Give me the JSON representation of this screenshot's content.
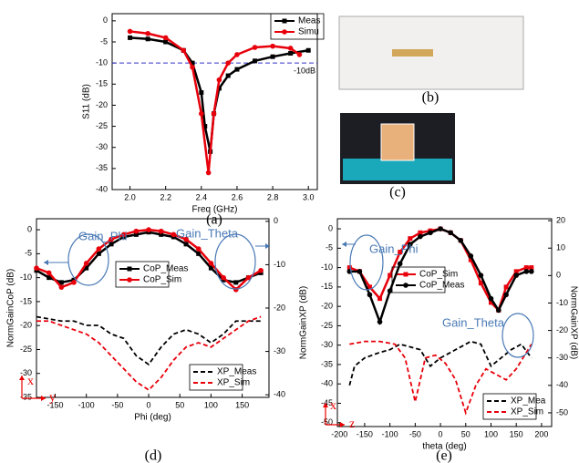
{
  "chart_data": [
    {
      "type": "line",
      "caption": "(a)",
      "x_label": "Freq (GHz)",
      "y_label": "S11 (dB)",
      "xlim": [
        1.9,
        3.05
      ],
      "xticks": [
        {
          "value": 2,
          "label": "2.0"
        },
        2.2,
        2.4,
        2.6,
        2.8,
        {
          "value": 3,
          "label": "3.0"
        }
      ],
      "ylim": [
        -40,
        1.7
      ],
      "yticks": [
        0,
        -5,
        -10,
        -15,
        -20,
        -25,
        -30,
        -35,
        -40
      ],
      "ref_line": {
        "value": -10,
        "label": "-10dB",
        "color": "#3333cc"
      },
      "series": [
        {
          "name": "Meas",
          "color": "#000000",
          "marker": "square",
          "dash": false,
          "x": [
            2.0,
            2.1,
            2.2,
            2.3,
            2.35,
            2.4,
            2.42,
            2.45,
            2.47,
            2.5,
            2.55,
            2.6,
            2.7,
            2.8,
            2.9,
            3.0
          ],
          "values": [
            -4,
            -4.3,
            -5,
            -7,
            -10,
            -17,
            -25,
            -31,
            -22,
            -16,
            -13,
            -11.5,
            -9.5,
            -8.5,
            -7.7,
            -7
          ]
        },
        {
          "name": "Simu",
          "color": "#e8000b",
          "marker": "circle",
          "dash": false,
          "x": [
            2.0,
            2.1,
            2.2,
            2.3,
            2.35,
            2.4,
            2.44,
            2.47,
            2.5,
            2.55,
            2.6,
            2.7,
            2.8,
            2.9,
            2.95
          ],
          "values": [
            -2.5,
            -3,
            -4,
            -7,
            -11,
            -22,
            -36,
            -22,
            -14,
            -10,
            -8,
            -6.3,
            -6,
            -6.5,
            -8
          ]
        }
      ]
    },
    {
      "type": "line",
      "caption": "(d)",
      "x_label": "Phi (deg)",
      "y_label": "NormGainCoP (dB)",
      "annotations": [
        "Gain_Phi",
        "Gain_Theta",
        "x",
        "y"
      ],
      "xlim": [
        -180,
        193
      ],
      "xticks": [
        -150,
        -100,
        -50,
        0,
        50,
        100,
        150
      ],
      "ylim": [
        -35,
        2.3
      ],
      "yticks": [
        0,
        -5,
        -10,
        -15,
        -20,
        -25,
        -30,
        -35
      ],
      "y2lim": [
        -40.6,
        0.6
      ],
      "y2ticks": [
        0,
        -10,
        -20,
        -30,
        -40
      ],
      "series": [
        {
          "name": "CoP_Meas",
          "color": "#000000",
          "marker": "square",
          "dash": false,
          "x": [
            -180,
            -160,
            -140,
            -120,
            -100,
            -80,
            -60,
            -40,
            -20,
            0,
            20,
            40,
            60,
            80,
            100,
            120,
            140,
            160,
            180
          ],
          "values": [
            -8.5,
            -10,
            -11,
            -10.5,
            -8,
            -5,
            -3,
            -1.5,
            -1,
            -0.5,
            -1,
            -1.5,
            -3,
            -5,
            -8,
            -10.5,
            -11,
            -10,
            -9
          ]
        },
        {
          "name": "CoP_Sim",
          "color": "#e8000b",
          "marker": "circle",
          "dash": false,
          "x": [
            -180,
            -160,
            -140,
            -120,
            -100,
            -80,
            -60,
            -40,
            -20,
            0,
            20,
            40,
            60,
            80,
            100,
            120,
            140,
            160,
            180
          ],
          "values": [
            -8,
            -9,
            -12,
            -11,
            -7,
            -4,
            -2,
            -1,
            -0.3,
            0,
            -0.3,
            -1,
            -2,
            -4,
            -7,
            -10,
            -12.5,
            -10,
            -8.5
          ]
        },
        {
          "name": "XP_Meas",
          "color": "#000000",
          "marker": "none",
          "dash": true,
          "axis": "y2",
          "x": [
            -180,
            -160,
            -140,
            -120,
            -100,
            -80,
            -60,
            -40,
            -20,
            0,
            20,
            40,
            60,
            80,
            100,
            120,
            140,
            160,
            180
          ],
          "values": [
            -22,
            -22.5,
            -23,
            -23,
            -24,
            -24,
            -26,
            -27,
            -31,
            -33,
            -29,
            -26,
            -25,
            -26,
            -28,
            -26,
            -23,
            -23,
            -23
          ]
        },
        {
          "name": "XP_Sim",
          "color": "#e8000b",
          "marker": "none",
          "dash": true,
          "axis": "y2",
          "x": [
            -180,
            -160,
            -140,
            -120,
            -100,
            -80,
            -60,
            -40,
            -20,
            0,
            20,
            40,
            60,
            80,
            100,
            120,
            140,
            160,
            180
          ],
          "values": [
            -23,
            -23,
            -24,
            -25,
            -26,
            -28,
            -31,
            -34,
            -37,
            -38.9,
            -36,
            -32,
            -29,
            -28,
            -29,
            -27,
            -25,
            -23,
            -22
          ]
        }
      ]
    },
    {
      "type": "line",
      "caption": "(e)",
      "x_label": "theta (deg)",
      "y_label": "NormGainXP (dB)",
      "y2_label": "NormGainXP (dB)",
      "annotations": [
        "Gain_Phi",
        "Gain_Theta",
        "x",
        "z"
      ],
      "xlim": [
        -204,
        220
      ],
      "xticks": [
        -200,
        -150,
        -100,
        -50,
        0,
        50,
        100,
        150,
        200
      ],
      "ylim": [
        -51,
        2.6
      ],
      "yticks": [
        0,
        -5,
        -10,
        -15,
        -20,
        -25,
        -30,
        -35,
        -40,
        -45,
        -50
      ],
      "y2lim": [
        -55,
        20.7
      ],
      "y2ticks": [
        20,
        10,
        0,
        -10,
        -20,
        -30,
        -40,
        -50
      ],
      "series": [
        {
          "name": "CoP_Sim",
          "color": "#e8000b",
          "marker": "square",
          "dash": false,
          "x": [
            -180,
            -160,
            -140,
            -120,
            -100,
            -80,
            -60,
            -40,
            -20,
            0,
            20,
            40,
            60,
            80,
            100,
            115,
            130,
            150,
            170,
            180
          ],
          "values": [
            -10,
            -11,
            -15,
            -18,
            -12,
            -6,
            -2.5,
            -1,
            -0.5,
            0,
            -1,
            -3,
            -8,
            -14,
            -19,
            -21,
            -15,
            -11,
            -10,
            -10
          ]
        },
        {
          "name": "CoP_Meas",
          "color": "#000000",
          "marker": "circle",
          "dash": false,
          "x": [
            -180,
            -160,
            -140,
            -120,
            -100,
            -80,
            -60,
            -40,
            -20,
            0,
            20,
            40,
            60,
            80,
            100,
            115,
            130,
            150,
            170,
            180
          ],
          "values": [
            -11,
            -11,
            -17,
            -24,
            -16,
            -9,
            -4,
            -2,
            -1,
            0,
            -1,
            -3,
            -7,
            -12,
            -18,
            -21,
            -17,
            -12,
            -11,
            -11
          ]
        },
        {
          "name": "XP_Mea",
          "color": "#000000",
          "marker": "none",
          "dash": true,
          "axis": "y2",
          "x": [
            -180,
            -170,
            -150,
            -120,
            -100,
            -80,
            -60,
            -40,
            -20,
            0,
            20,
            40,
            60,
            80,
            100,
            120,
            140,
            160,
            180
          ],
          "values": [
            -40,
            -33,
            -30,
            -28,
            -27,
            -25,
            -26,
            -27,
            -33,
            -30,
            -28,
            -26,
            -24,
            -25,
            -33,
            -30,
            -27,
            -25,
            -30
          ]
        },
        {
          "name": "XP_Sim",
          "color": "#e8000b",
          "marker": "none",
          "dash": true,
          "axis": "y2",
          "x": [
            -180,
            -150,
            -120,
            -90,
            -70,
            -50,
            -30,
            -10,
            10,
            30,
            50,
            70,
            90,
            110,
            130,
            150,
            170,
            180
          ],
          "values": [
            -25,
            -24,
            -24,
            -25,
            -30,
            -46,
            -30,
            -29,
            -32,
            -38,
            -50,
            -40,
            -34,
            -36,
            -38,
            -34,
            -28,
            -25
          ]
        }
      ]
    }
  ],
  "photos": [
    {
      "caption": "(b)"
    },
    {
      "caption": "(c)"
    }
  ]
}
